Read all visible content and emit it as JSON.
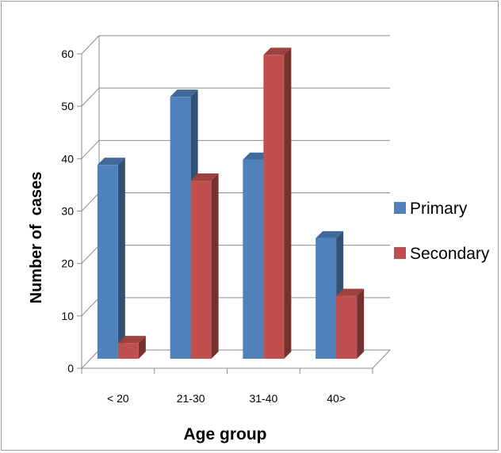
{
  "chart_data": {
    "type": "bar",
    "categories": [
      "< 20",
      "21-30",
      "31-40",
      "40>"
    ],
    "series": [
      {
        "name": "Primary",
        "values": [
          37,
          50,
          38,
          23
        ],
        "color": "#4f81bd"
      },
      {
        "name": "Secondary",
        "values": [
          3,
          34,
          58,
          12
        ],
        "color": "#c0504d"
      }
    ],
    "title": "",
    "xlabel": "Age group",
    "ylabel": "Number of  cases",
    "ylim": [
      0,
      60
    ],
    "yticks": [
      0,
      10,
      20,
      30,
      40,
      50,
      60
    ],
    "grid": true,
    "legend_position": "right",
    "style": "3d-clustered-column"
  }
}
